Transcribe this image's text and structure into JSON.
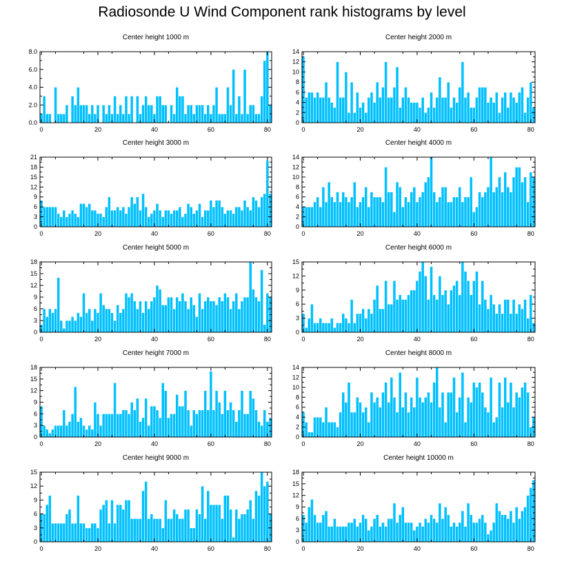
{
  "title": "Radiosonde U Wind Component rank histograms by level",
  "colors": {
    "bar": "#00c0ff",
    "bar_edge": "#ffffff",
    "axis": "#000000"
  },
  "chart_data": [
    {
      "type": "bar",
      "title": "Center height 1000 m",
      "x_ticks": [
        0,
        20,
        40,
        60,
        80
      ],
      "y_tick_labels": [
        "0.0",
        "2.0",
        "4.0",
        "6.0",
        "8.0"
      ],
      "ylim": [
        0,
        8
      ],
      "values": [
        1,
        3,
        1,
        1,
        0,
        4,
        1,
        1,
        1,
        2,
        0,
        3,
        2,
        4,
        2,
        2,
        2,
        1,
        2,
        1,
        2,
        0,
        2,
        1,
        2,
        1,
        3,
        1,
        2,
        1,
        3,
        1,
        3,
        0,
        3,
        1,
        2,
        3,
        2,
        2,
        1,
        3,
        3,
        2,
        2,
        0,
        2,
        1,
        4,
        3,
        3,
        1,
        2,
        2,
        1,
        2,
        2,
        2,
        1,
        2,
        1,
        2,
        4,
        1,
        1,
        1,
        4,
        2,
        6,
        1,
        3,
        1,
        6,
        1,
        2,
        2,
        1,
        1,
        3,
        7,
        8,
        2
      ]
    },
    {
      "type": "bar",
      "title": "Center height 2000 m",
      "x_ticks": [
        0,
        20,
        40,
        60,
        80
      ],
      "y_tick_labels": [
        "0",
        "2",
        "4",
        "6",
        "8",
        "10",
        "12",
        "14"
      ],
      "ylim": [
        0,
        14
      ],
      "values": [
        13,
        5,
        6,
        6,
        5,
        6,
        5,
        5,
        8,
        5,
        4,
        3,
        12,
        5,
        5,
        10,
        2,
        8,
        2,
        6,
        3,
        4,
        2,
        5,
        6,
        4,
        8,
        5,
        7,
        12,
        5,
        5,
        7,
        11,
        3,
        5,
        7,
        5,
        4,
        4,
        4,
        3,
        5,
        2,
        3,
        6,
        3,
        5,
        9,
        5,
        5,
        8,
        3,
        5,
        4,
        7,
        12,
        5,
        6,
        3,
        3,
        5,
        7,
        7,
        7,
        4,
        5,
        4,
        6,
        2,
        5,
        6,
        3,
        6,
        5,
        4,
        6,
        7,
        2,
        5,
        8,
        3
      ]
    },
    {
      "type": "bar",
      "title": "Center height 3000 m",
      "x_ticks": [
        0,
        20,
        40,
        60,
        80
      ],
      "y_tick_labels": [
        "0",
        "3",
        "6",
        "9",
        "12",
        "15",
        "18",
        "21"
      ],
      "ylim": [
        0,
        21
      ],
      "values": [
        8,
        6,
        6,
        6,
        6,
        6,
        4,
        3,
        5,
        3,
        4,
        5,
        4,
        3,
        7,
        7,
        6,
        7,
        5,
        5,
        4,
        4,
        3,
        6,
        9,
        5,
        5,
        6,
        5,
        6,
        4,
        6,
        9,
        7,
        9,
        5,
        10,
        6,
        3,
        4,
        5,
        7,
        5,
        3,
        5,
        5,
        4,
        5,
        5,
        6,
        3,
        4,
        7,
        6,
        4,
        5,
        7,
        3,
        5,
        5,
        8,
        6,
        8,
        8,
        6,
        4,
        5,
        5,
        4,
        6,
        6,
        5,
        8,
        6,
        5,
        9,
        8,
        6,
        9,
        10,
        20,
        10
      ]
    },
    {
      "type": "bar",
      "title": "Center height 4000 m",
      "x_ticks": [
        0,
        20,
        40,
        60,
        80
      ],
      "y_tick_labels": [
        "0",
        "2",
        "4",
        "6",
        "8",
        "10",
        "12",
        "14"
      ],
      "ylim": [
        0,
        14
      ],
      "values": [
        4,
        4,
        4,
        4,
        5,
        6,
        4,
        8,
        5,
        9,
        6,
        5,
        7,
        5,
        7,
        6,
        5,
        6,
        9,
        4,
        5,
        6,
        8,
        4,
        7,
        6,
        6,
        6,
        5,
        12,
        7,
        7,
        3,
        9,
        8,
        4,
        6,
        5,
        7,
        8,
        5,
        6,
        7,
        9,
        10,
        14,
        7,
        5,
        6,
        8,
        8,
        5,
        5,
        6,
        6,
        8,
        5,
        6,
        6,
        10,
        3,
        4,
        7,
        6,
        7,
        8,
        14,
        7,
        8,
        10,
        7,
        11,
        8,
        7,
        10,
        12,
        12,
        9,
        10,
        5,
        11,
        10
      ]
    },
    {
      "type": "bar",
      "title": "Center height 5000 m",
      "x_ticks": [
        0,
        20,
        40,
        60,
        80
      ],
      "y_tick_labels": [
        "0",
        "3",
        "6",
        "9",
        "12",
        "15",
        "18"
      ],
      "ylim": [
        0,
        18
      ],
      "values": [
        2,
        6,
        4,
        6,
        5,
        6,
        14,
        3,
        1,
        3,
        3,
        4,
        3,
        5,
        4,
        10,
        5,
        6,
        3,
        6,
        5,
        10,
        7,
        6,
        6,
        5,
        3,
        7,
        5,
        6,
        10,
        9,
        10,
        8,
        6,
        8,
        5,
        8,
        6,
        8,
        9,
        12,
        11,
        7,
        7,
        9,
        9,
        6,
        9,
        8,
        10,
        8,
        6,
        9,
        7,
        4,
        10,
        6,
        8,
        9,
        8,
        8,
        7,
        9,
        8,
        10,
        9,
        6,
        8,
        10,
        6,
        8,
        9,
        9,
        18,
        11,
        9,
        8,
        16,
        2,
        10,
        9
      ]
    },
    {
      "type": "bar",
      "title": "Center height 6000 m",
      "x_ticks": [
        0,
        20,
        40,
        60,
        80
      ],
      "y_tick_labels": [
        "0",
        "3",
        "6",
        "9",
        "12",
        "15"
      ],
      "ylim": [
        0,
        15
      ],
      "values": [
        4,
        1,
        3,
        6,
        2,
        2,
        3,
        2,
        2,
        2,
        3,
        1,
        2,
        2,
        4,
        3,
        2,
        7,
        2,
        4,
        4,
        5,
        3,
        5,
        4,
        7,
        10,
        5,
        5,
        11,
        6,
        6,
        11,
        7,
        8,
        7,
        7,
        8,
        9,
        9,
        11,
        13,
        15,
        12,
        7,
        14,
        8,
        7,
        12,
        8,
        9,
        6,
        9,
        10,
        11,
        8,
        15,
        13,
        11,
        8,
        11,
        13,
        6,
        11,
        7,
        5,
        8,
        6,
        4,
        6,
        4,
        7,
        7,
        4,
        7,
        4,
        6,
        5,
        7,
        3,
        8,
        2
      ]
    },
    {
      "type": "bar",
      "title": "Center height 7000 m",
      "x_ticks": [
        0,
        20,
        40,
        60,
        80
      ],
      "y_tick_labels": [
        "0",
        "3",
        "6",
        "9",
        "12",
        "15",
        "18"
      ],
      "ylim": [
        0,
        18
      ],
      "values": [
        8,
        3,
        2,
        1,
        2,
        3,
        3,
        3,
        7,
        3,
        4,
        6,
        13,
        4,
        5,
        3,
        2,
        3,
        2,
        9,
        6,
        3,
        6,
        6,
        6,
        6,
        14,
        6,
        6,
        7,
        7,
        6,
        9,
        7,
        10,
        4,
        5,
        10,
        3,
        8,
        8,
        7,
        5,
        14,
        12,
        5,
        6,
        6,
        11,
        8,
        8,
        12,
        7,
        3,
        7,
        6,
        7,
        7,
        12,
        7,
        17,
        7,
        12,
        9,
        6,
        12,
        7,
        9,
        7,
        4,
        7,
        12,
        6,
        6,
        12,
        10,
        7,
        4,
        3,
        7,
        4,
        5
      ]
    },
    {
      "type": "bar",
      "title": "Center height 8000 m",
      "x_ticks": [
        0,
        20,
        40,
        60,
        80
      ],
      "y_tick_labels": [
        "0",
        "2",
        "4",
        "6",
        "8",
        "10",
        "12",
        "14"
      ],
      "ylim": [
        0,
        14
      ],
      "values": [
        5,
        3,
        1,
        1,
        4,
        4,
        4,
        3,
        6,
        3,
        3,
        3,
        2,
        5,
        9,
        7,
        11,
        5,
        5,
        8,
        7,
        5,
        6,
        3,
        9,
        7,
        8,
        6,
        9,
        11,
        7,
        12,
        8,
        5,
        13,
        6,
        9,
        5,
        8,
        6,
        12,
        8,
        7,
        8,
        9,
        7,
        11,
        14,
        6,
        9,
        3,
        9,
        9,
        12,
        5,
        8,
        13,
        3,
        8,
        7,
        11,
        10,
        11,
        9,
        6,
        5,
        12,
        3,
        4,
        11,
        6,
        12,
        7,
        11,
        6,
        9,
        8,
        10,
        11,
        9,
        2,
        4
      ]
    },
    {
      "type": "bar",
      "title": "Center height 9000 m",
      "x_ticks": [
        0,
        20,
        40,
        60,
        80
      ],
      "y_tick_labels": [
        "0",
        "3",
        "6",
        "9",
        "12",
        "15"
      ],
      "ylim": [
        0,
        15
      ],
      "values": [
        6,
        6,
        8,
        10,
        4,
        4,
        4,
        4,
        4,
        6,
        7,
        4,
        4,
        10,
        4,
        4,
        3,
        3,
        4,
        4,
        3,
        7,
        8,
        9,
        4,
        9,
        4,
        8,
        8,
        7,
        9,
        9,
        5,
        5,
        5,
        5,
        11,
        13,
        5,
        6,
        5,
        5,
        5,
        3,
        9,
        5,
        5,
        7,
        6,
        5,
        5,
        7,
        7,
        3,
        3,
        7,
        6,
        12,
        5,
        11,
        8,
        8,
        8,
        8,
        5,
        10,
        10,
        7,
        1,
        7,
        5,
        6,
        6,
        7,
        9,
        5,
        11,
        10,
        15,
        12,
        13,
        6
      ]
    },
    {
      "type": "bar",
      "title": "Center height 10000 m",
      "x_ticks": [
        0,
        20,
        40,
        60,
        80
      ],
      "y_tick_labels": [
        "0",
        "3",
        "6",
        "9",
        "12",
        "15",
        "18"
      ],
      "ylim": [
        0,
        18
      ],
      "values": [
        7,
        5,
        9,
        11,
        7,
        5,
        5,
        7,
        8,
        4,
        4,
        6,
        4,
        4,
        4,
        4,
        5,
        5,
        6,
        4,
        5,
        7,
        6,
        3,
        4,
        6,
        7,
        4,
        5,
        4,
        6,
        6,
        10,
        5,
        7,
        9,
        5,
        5,
        5,
        3,
        4,
        5,
        4,
        6,
        5,
        7,
        6,
        5,
        10,
        6,
        9,
        7,
        4,
        5,
        4,
        5,
        8,
        4,
        10,
        7,
        5,
        5,
        6,
        7,
        5,
        2,
        3,
        5,
        10,
        8,
        7,
        7,
        6,
        8,
        5,
        9,
        6,
        8,
        9,
        12,
        14,
        16
      ]
    }
  ]
}
